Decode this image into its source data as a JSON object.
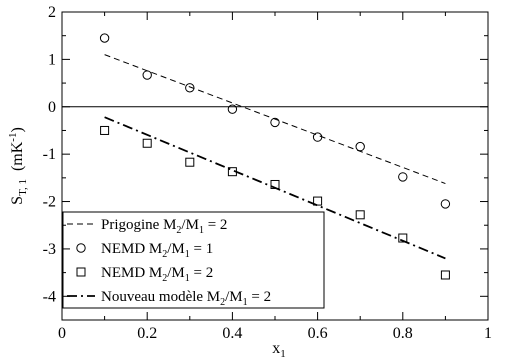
{
  "chart_data": {
    "type": "scatter",
    "title": "",
    "xlabel": "x",
    "xlabel_sub": "1",
    "ylabel": "S",
    "ylabel_sub": "T, 1",
    "ylabel_unit": "(mK",
    "ylabel_unit_sup": "-1",
    "ylabel_unit_close": ")",
    "xlim": [
      0,
      1
    ],
    "ylim": [
      -4.5,
      2
    ],
    "x_ticks": [
      {
        "value": 0,
        "label": "0"
      },
      {
        "value": 0.2,
        "label": "0.2"
      },
      {
        "value": 0.4,
        "label": "0.4"
      },
      {
        "value": 0.6,
        "label": "0.6"
      },
      {
        "value": 0.8,
        "label": "0.8"
      },
      {
        "value": 1,
        "label": "1"
      }
    ],
    "y_ticks": [
      {
        "value": 2,
        "label": "2"
      },
      {
        "value": 1,
        "label": "1"
      },
      {
        "value": 0,
        "label": "0"
      },
      {
        "value": -1,
        "label": "-1"
      },
      {
        "value": -2,
        "label": "-2"
      },
      {
        "value": -3,
        "label": "-3"
      },
      {
        "value": -4,
        "label": "-4"
      }
    ],
    "x_minor_step": 0.1,
    "y_minor_step": 0.5,
    "zero_line": true,
    "grid": false,
    "legend_position": "bottom-left",
    "series": [
      {
        "id": "prigogine",
        "name": "Prigogine M",
        "name_parts": [
          {
            "t": "Prigogine M"
          },
          {
            "t": "2",
            "sub": true
          },
          {
            "t": "/M"
          },
          {
            "t": "1",
            "sub": true
          },
          {
            "t": " = 2"
          }
        ],
        "style": "dashed-line",
        "x": [
          0.1,
          0.9
        ],
        "y": [
          1.1,
          -1.62
        ]
      },
      {
        "id": "nemd1",
        "name": "NEMD M",
        "name_parts": [
          {
            "t": "NEMD M"
          },
          {
            "t": "2",
            "sub": true
          },
          {
            "t": "/M"
          },
          {
            "t": "1",
            "sub": true
          },
          {
            "t": " = 1"
          }
        ],
        "style": "circle-markers",
        "x": [
          0.1,
          0.2,
          0.3,
          0.4,
          0.5,
          0.6,
          0.7,
          0.8,
          0.9
        ],
        "y": [
          1.45,
          0.67,
          0.4,
          -0.05,
          -0.33,
          -0.64,
          -0.84,
          -1.48,
          -2.05
        ]
      },
      {
        "id": "nemd2",
        "name": "NEMD M",
        "name_parts": [
          {
            "t": "NEMD M"
          },
          {
            "t": "2",
            "sub": true
          },
          {
            "t": "/M"
          },
          {
            "t": "1",
            "sub": true
          },
          {
            "t": " = 2"
          }
        ],
        "style": "square-markers",
        "x": [
          0.1,
          0.2,
          0.3,
          0.4,
          0.5,
          0.6,
          0.7,
          0.8,
          0.9
        ],
        "y": [
          -0.5,
          -0.77,
          -1.17,
          -1.37,
          -1.64,
          -1.99,
          -2.28,
          -2.77,
          -3.55
        ]
      },
      {
        "id": "nouveau",
        "name": "Nouveau modèle M",
        "name_parts": [
          {
            "t": "Nouveau modèle M"
          },
          {
            "t": "2",
            "sub": true
          },
          {
            "t": "/M"
          },
          {
            "t": "1",
            "sub": true
          },
          {
            "t": " = 2"
          }
        ],
        "style": "dashdot-line",
        "x": [
          0.1,
          0.9
        ],
        "y": [
          -0.22,
          -3.2
        ]
      }
    ]
  }
}
